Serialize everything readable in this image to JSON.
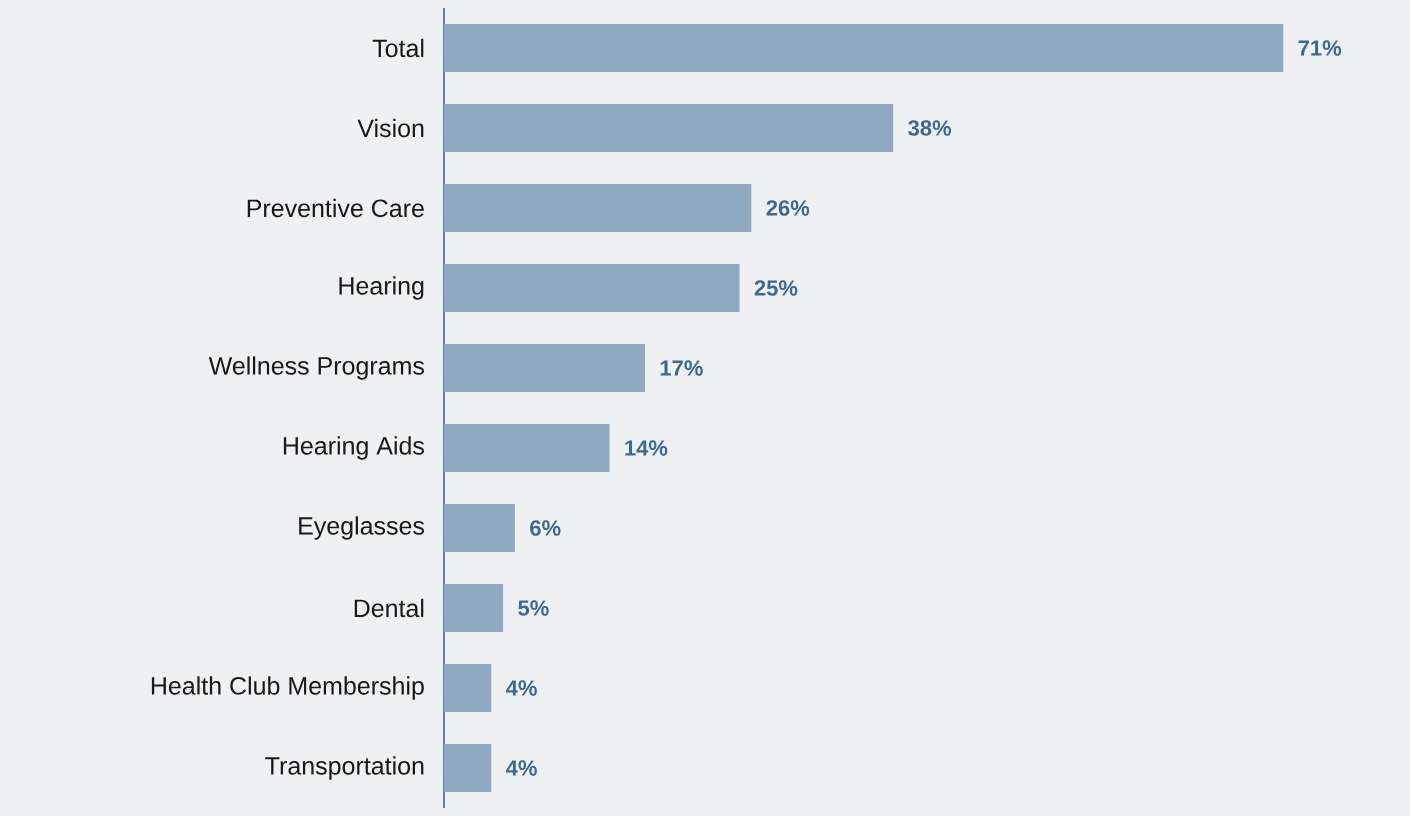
{
  "chart_data": {
    "type": "bar",
    "orientation": "horizontal",
    "categories": [
      "Total",
      "Vision",
      "Preventive Care",
      "Hearing",
      "Wellness Programs",
      "Hearing Aids",
      "Eyeglasses",
      "Dental",
      "Health Club Membership",
      "Transportation"
    ],
    "values": [
      71,
      38,
      26,
      25,
      17,
      14,
      6,
      5,
      4,
      4
    ],
    "value_labels": [
      "71%",
      "38%",
      "26%",
      "25%",
      "17%",
      "14%",
      "6%",
      "5%",
      "4%",
      "4%"
    ],
    "color": "#8ea9c1"
  }
}
